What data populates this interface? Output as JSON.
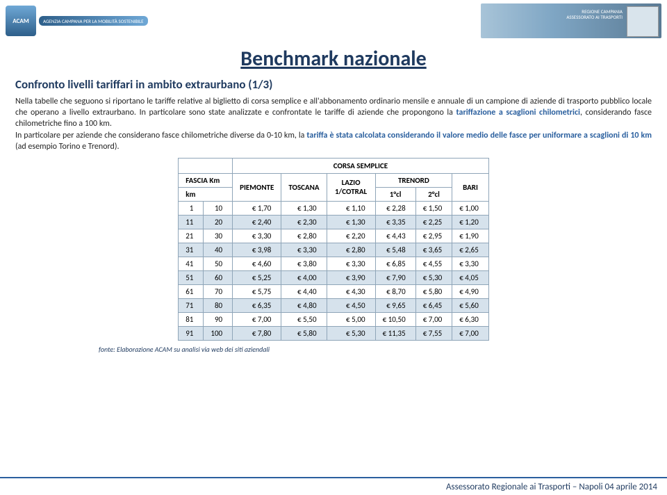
{
  "header": {
    "logo_badge": "ACAM",
    "logo_strip": "AGENZIA CAMPANA PER LA MOBILITÀ SOSTENIBILE",
    "region_line1": "REGIONE CAMPANIA",
    "region_line2": "ASSESSORATO AI TRASPORTI"
  },
  "title": "Benchmark nazionale",
  "subtitle": "Confronto livelli tariffari in ambito extraurbano (1/3)",
  "paragraph_parts": {
    "p1a": "Nella tabelle che seguono si riportano le tariffe relative al biglietto di corsa semplice e all'abbonamento ordinario mensile e annuale di un campione di aziende di trasporto pubblico locale che operano a livello extraurbano. In particolare sono state analizzate e confrontate le tariffe di aziende che propongono la ",
    "kw1": "tariffazione a scaglioni chilometrici",
    "p1b": ", considerando fasce chilometriche fino a 100 km.",
    "p2a": "In particolare per aziende che considerano fasce chilometriche diverse da 0-10 km, la ",
    "kw2": "tariffa è stata calcolata considerando il valore medio delle fasce per uniformare a scaglioni di 10 km",
    "p2b": " (ad esempio Torino e Trenord)."
  },
  "table": {
    "super_header": "CORSA SEMPLICE",
    "col_group_left": "FASCIA Km",
    "col_km": "km",
    "cols": [
      "PIEMONTE",
      "TOSCANA",
      "LAZIO 1/COTRAL"
    ],
    "trenord_header": "TRENORD",
    "trenord_subcols": [
      "1°cl",
      "2°cl"
    ],
    "col_bari": "BARI",
    "rows": [
      {
        "from": "1",
        "to": "10",
        "piemonte": "€ 1,70",
        "toscana": "€ 1,30",
        "lazio": "€ 1,10",
        "t1": "€ 2,28",
        "t2": "€ 1,50",
        "bari": "€ 1,00"
      },
      {
        "from": "11",
        "to": "20",
        "piemonte": "€ 2,40",
        "toscana": "€ 2,30",
        "lazio": "€ 1,30",
        "t1": "€ 3,35",
        "t2": "€ 2,25",
        "bari": "€ 1,20"
      },
      {
        "from": "21",
        "to": "30",
        "piemonte": "€ 3,30",
        "toscana": "€ 2,80",
        "lazio": "€ 2,20",
        "t1": "€ 4,43",
        "t2": "€ 2,95",
        "bari": "€ 1,90"
      },
      {
        "from": "31",
        "to": "40",
        "piemonte": "€ 3,98",
        "toscana": "€ 3,30",
        "lazio": "€ 2,80",
        "t1": "€ 5,48",
        "t2": "€ 3,65",
        "bari": "€ 2,65"
      },
      {
        "from": "41",
        "to": "50",
        "piemonte": "€ 4,60",
        "toscana": "€ 3,80",
        "lazio": "€ 3,30",
        "t1": "€ 6,85",
        "t2": "€ 4,55",
        "bari": "€ 3,30"
      },
      {
        "from": "51",
        "to": "60",
        "piemonte": "€ 5,25",
        "toscana": "€ 4,00",
        "lazio": "€ 3,90",
        "t1": "€ 7,90",
        "t2": "€ 5,30",
        "bari": "€ 4,05"
      },
      {
        "from": "61",
        "to": "70",
        "piemonte": "€ 5,75",
        "toscana": "€ 4,40",
        "lazio": "€ 4,30",
        "t1": "€ 8,70",
        "t2": "€ 5,80",
        "bari": "€ 4,90"
      },
      {
        "from": "71",
        "to": "80",
        "piemonte": "€ 6,35",
        "toscana": "€ 4,80",
        "lazio": "€ 4,50",
        "t1": "€ 9,65",
        "t2": "€ 6,45",
        "bari": "€ 5,60"
      },
      {
        "from": "81",
        "to": "90",
        "piemonte": "€ 7,00",
        "toscana": "€ 5,50",
        "lazio": "€ 5,00",
        "t1": "€ 10,50",
        "t2": "€ 7,00",
        "bari": "€ 6,30"
      },
      {
        "from": "91",
        "to": "100",
        "piemonte": "€ 7,80",
        "toscana": "€ 5,80",
        "lazio": "€ 5,30",
        "t1": "€ 11,35",
        "t2": "€ 7,55",
        "bari": "€ 7,00"
      }
    ]
  },
  "source_note": "fonte: Elaborazione ACAM su analisi via web dei siti aziendali",
  "footer": "Assessorato Regionale ai Trasporti – Napoli 04 aprile 2014",
  "colors": {
    "title": "#1f3a5f",
    "keyword": "#2a5f9e",
    "row_alt": "#d6e2ec",
    "border": "#8fa5b8"
  }
}
